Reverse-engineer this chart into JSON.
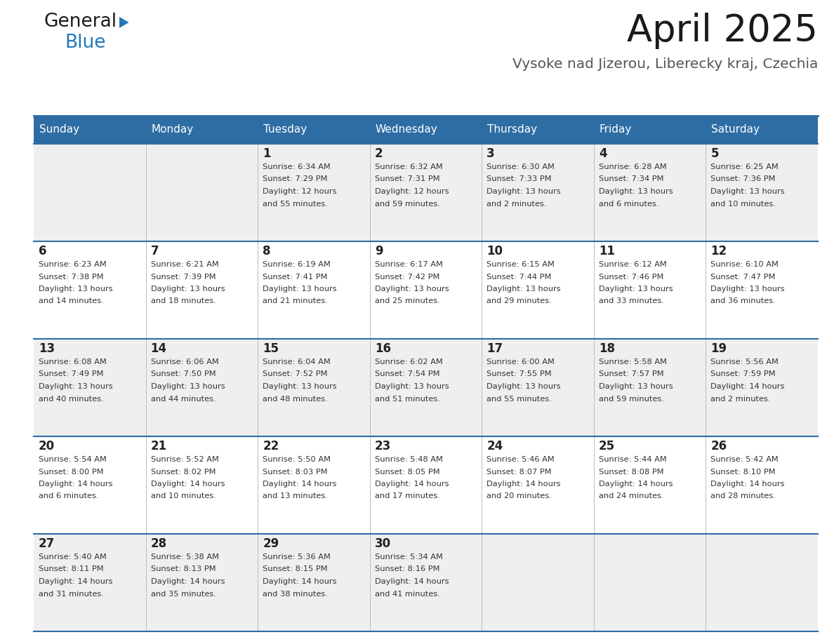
{
  "title": "April 2025",
  "subtitle": "Vysoke nad Jizerou, Liberecky kraj, Czechia",
  "header_bg_color": "#2E6DA4",
  "header_text_color": "#FFFFFF",
  "cell_bg_even": "#EFEFEF",
  "cell_bg_odd": "#FFFFFF",
  "cell_text_color": "#333333",
  "day_number_color": "#222222",
  "border_color": "#2E6DA4",
  "days_of_week": [
    "Sunday",
    "Monday",
    "Tuesday",
    "Wednesday",
    "Thursday",
    "Friday",
    "Saturday"
  ],
  "weeks": [
    [
      {
        "day": "",
        "info": ""
      },
      {
        "day": "",
        "info": ""
      },
      {
        "day": "1",
        "info": "Sunrise: 6:34 AM\nSunset: 7:29 PM\nDaylight: 12 hours\nand 55 minutes."
      },
      {
        "day": "2",
        "info": "Sunrise: 6:32 AM\nSunset: 7:31 PM\nDaylight: 12 hours\nand 59 minutes."
      },
      {
        "day": "3",
        "info": "Sunrise: 6:30 AM\nSunset: 7:33 PM\nDaylight: 13 hours\nand 2 minutes."
      },
      {
        "day": "4",
        "info": "Sunrise: 6:28 AM\nSunset: 7:34 PM\nDaylight: 13 hours\nand 6 minutes."
      },
      {
        "day": "5",
        "info": "Sunrise: 6:25 AM\nSunset: 7:36 PM\nDaylight: 13 hours\nand 10 minutes."
      }
    ],
    [
      {
        "day": "6",
        "info": "Sunrise: 6:23 AM\nSunset: 7:38 PM\nDaylight: 13 hours\nand 14 minutes."
      },
      {
        "day": "7",
        "info": "Sunrise: 6:21 AM\nSunset: 7:39 PM\nDaylight: 13 hours\nand 18 minutes."
      },
      {
        "day": "8",
        "info": "Sunrise: 6:19 AM\nSunset: 7:41 PM\nDaylight: 13 hours\nand 21 minutes."
      },
      {
        "day": "9",
        "info": "Sunrise: 6:17 AM\nSunset: 7:42 PM\nDaylight: 13 hours\nand 25 minutes."
      },
      {
        "day": "10",
        "info": "Sunrise: 6:15 AM\nSunset: 7:44 PM\nDaylight: 13 hours\nand 29 minutes."
      },
      {
        "day": "11",
        "info": "Sunrise: 6:12 AM\nSunset: 7:46 PM\nDaylight: 13 hours\nand 33 minutes."
      },
      {
        "day": "12",
        "info": "Sunrise: 6:10 AM\nSunset: 7:47 PM\nDaylight: 13 hours\nand 36 minutes."
      }
    ],
    [
      {
        "day": "13",
        "info": "Sunrise: 6:08 AM\nSunset: 7:49 PM\nDaylight: 13 hours\nand 40 minutes."
      },
      {
        "day": "14",
        "info": "Sunrise: 6:06 AM\nSunset: 7:50 PM\nDaylight: 13 hours\nand 44 minutes."
      },
      {
        "day": "15",
        "info": "Sunrise: 6:04 AM\nSunset: 7:52 PM\nDaylight: 13 hours\nand 48 minutes."
      },
      {
        "day": "16",
        "info": "Sunrise: 6:02 AM\nSunset: 7:54 PM\nDaylight: 13 hours\nand 51 minutes."
      },
      {
        "day": "17",
        "info": "Sunrise: 6:00 AM\nSunset: 7:55 PM\nDaylight: 13 hours\nand 55 minutes."
      },
      {
        "day": "18",
        "info": "Sunrise: 5:58 AM\nSunset: 7:57 PM\nDaylight: 13 hours\nand 59 minutes."
      },
      {
        "day": "19",
        "info": "Sunrise: 5:56 AM\nSunset: 7:59 PM\nDaylight: 14 hours\nand 2 minutes."
      }
    ],
    [
      {
        "day": "20",
        "info": "Sunrise: 5:54 AM\nSunset: 8:00 PM\nDaylight: 14 hours\nand 6 minutes."
      },
      {
        "day": "21",
        "info": "Sunrise: 5:52 AM\nSunset: 8:02 PM\nDaylight: 14 hours\nand 10 minutes."
      },
      {
        "day": "22",
        "info": "Sunrise: 5:50 AM\nSunset: 8:03 PM\nDaylight: 14 hours\nand 13 minutes."
      },
      {
        "day": "23",
        "info": "Sunrise: 5:48 AM\nSunset: 8:05 PM\nDaylight: 14 hours\nand 17 minutes."
      },
      {
        "day": "24",
        "info": "Sunrise: 5:46 AM\nSunset: 8:07 PM\nDaylight: 14 hours\nand 20 minutes."
      },
      {
        "day": "25",
        "info": "Sunrise: 5:44 AM\nSunset: 8:08 PM\nDaylight: 14 hours\nand 24 minutes."
      },
      {
        "day": "26",
        "info": "Sunrise: 5:42 AM\nSunset: 8:10 PM\nDaylight: 14 hours\nand 28 minutes."
      }
    ],
    [
      {
        "day": "27",
        "info": "Sunrise: 5:40 AM\nSunset: 8:11 PM\nDaylight: 14 hours\nand 31 minutes."
      },
      {
        "day": "28",
        "info": "Sunrise: 5:38 AM\nSunset: 8:13 PM\nDaylight: 14 hours\nand 35 minutes."
      },
      {
        "day": "29",
        "info": "Sunrise: 5:36 AM\nSunset: 8:15 PM\nDaylight: 14 hours\nand 38 minutes."
      },
      {
        "day": "30",
        "info": "Sunrise: 5:34 AM\nSunset: 8:16 PM\nDaylight: 14 hours\nand 41 minutes."
      },
      {
        "day": "",
        "info": ""
      },
      {
        "day": "",
        "info": ""
      },
      {
        "day": "",
        "info": ""
      }
    ]
  ],
  "logo_color_general": "#1a1a1a",
  "logo_color_blue": "#2079B8",
  "logo_triangle_color": "#2079B8"
}
